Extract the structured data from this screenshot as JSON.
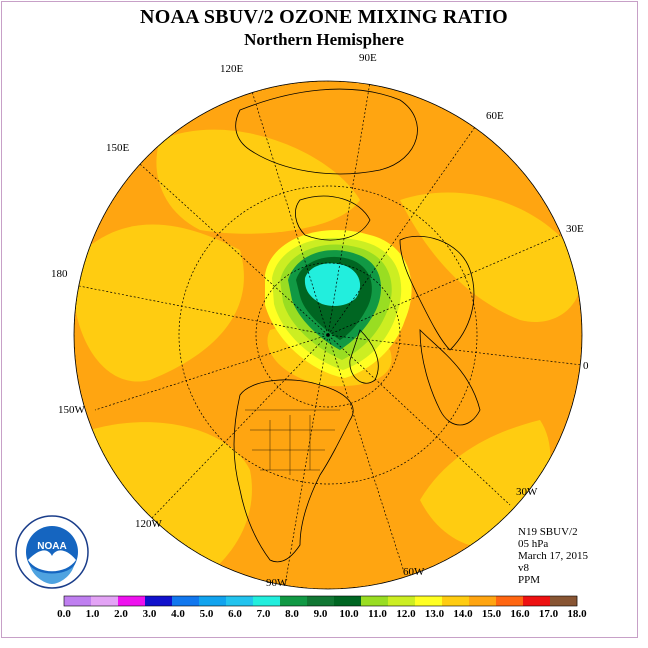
{
  "title": "NOAA SBUV/2 OZONE MIXING RATIO",
  "subtitle": "Northern Hemisphere",
  "longitude_labels": [
    "90E",
    "60E",
    "30E",
    "0",
    "30W",
    "60W",
    "90W",
    "120W",
    "150W",
    "180",
    "150E",
    "120E"
  ],
  "info": {
    "instrument": "N19 SBUV/2",
    "level": "05 hPa",
    "date": "March 17, 2015",
    "version": "v8",
    "units": "PPM"
  },
  "logo_text": "NOAA",
  "colorbar": {
    "ticks": [
      "0.0",
      "1.0",
      "2.0",
      "3.0",
      "4.0",
      "5.0",
      "6.0",
      "7.0",
      "8.0",
      "9.0",
      "10.0",
      "11.0",
      "12.0",
      "13.0",
      "14.0",
      "15.0",
      "16.0",
      "17.0",
      "18.0"
    ],
    "colors": [
      "#bf7ff0",
      "#e3a3f5",
      "#ee11ee",
      "#1111cc",
      "#1177ee",
      "#11a3ee",
      "#22c3ee",
      "#22eedd",
      "#119944",
      "#117733",
      "#006622",
      "#99dd22",
      "#ccee22",
      "#ffff22",
      "#ffcc11",
      "#ffa511",
      "#ff6611",
      "#ee1111",
      "#885533"
    ]
  }
}
